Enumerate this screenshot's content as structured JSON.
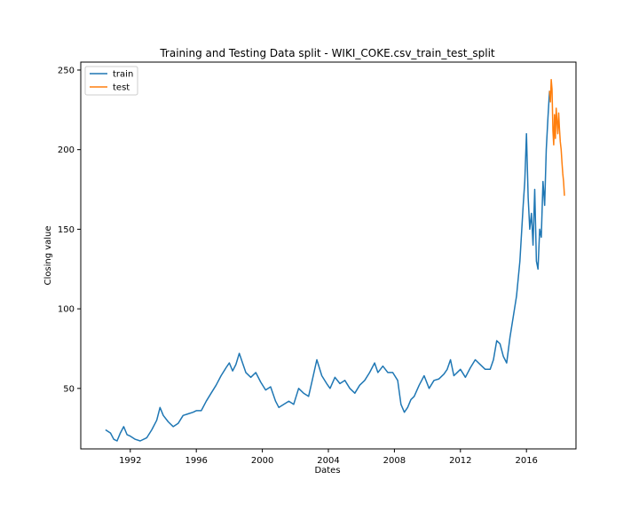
{
  "chart_data": {
    "type": "line",
    "title": "Training and Testing Data split - WIKI_COKE.csv_train_test_split",
    "xlabel": "Dates",
    "ylabel": "Closing value",
    "xlim": [
      1989.0,
      2019.0
    ],
    "ylim": [
      12,
      255
    ],
    "xticks": [
      1992,
      1996,
      2000,
      2004,
      2008,
      2012,
      2016
    ],
    "xtick_labels": [
      "1992",
      "1996",
      "2000",
      "2004",
      "2008",
      "2012",
      "2016"
    ],
    "yticks": [
      50,
      100,
      150,
      200,
      250
    ],
    "ytick_labels": [
      "50",
      "100",
      "150",
      "200",
      "250"
    ],
    "grid": false,
    "legend_position": "top-left",
    "series": [
      {
        "name": "train",
        "color": "#1f77b4",
        "x": [
          1990.5,
          1990.8,
          1991.0,
          1991.2,
          1991.4,
          1991.6,
          1991.8,
          1992.0,
          1992.3,
          1992.6,
          1993.0,
          1993.3,
          1993.6,
          1993.8,
          1994.0,
          1994.3,
          1994.6,
          1994.9,
          1995.2,
          1995.5,
          1995.8,
          1996.0,
          1996.3,
          1996.6,
          1996.9,
          1997.2,
          1997.5,
          1997.8,
          1998.0,
          1998.2,
          1998.4,
          1998.6,
          1998.8,
          1999.0,
          1999.3,
          1999.6,
          1999.9,
          2000.2,
          2000.5,
          2000.8,
          2001.0,
          2001.3,
          2001.6,
          2001.9,
          2002.2,
          2002.5,
          2002.8,
          2003.0,
          2003.3,
          2003.6,
          2003.9,
          2004.1,
          2004.4,
          2004.7,
          2005.0,
          2005.3,
          2005.6,
          2005.9,
          2006.2,
          2006.5,
          2006.8,
          2007.0,
          2007.3,
          2007.6,
          2007.9,
          2008.2,
          2008.4,
          2008.6,
          2008.8,
          2009.0,
          2009.2,
          2009.5,
          2009.8,
          2010.1,
          2010.4,
          2010.7,
          2011.0,
          2011.2,
          2011.4,
          2011.6,
          2011.8,
          2012.0,
          2012.3,
          2012.6,
          2012.9,
          2013.2,
          2013.5,
          2013.8,
          2014.0,
          2014.2,
          2014.4,
          2014.6,
          2014.8,
          2015.0,
          2015.2,
          2015.4,
          2015.6,
          2015.8,
          2015.9,
          2016.0,
          2016.1,
          2016.2,
          2016.3,
          2016.4,
          2016.5,
          2016.6,
          2016.7,
          2016.8,
          2016.9,
          2017.0,
          2017.1,
          2017.2,
          2017.3,
          2017.4
        ],
        "values": [
          24,
          22,
          18,
          17,
          22,
          26,
          21,
          20,
          18,
          17,
          19,
          24,
          30,
          38,
          33,
          29,
          26,
          28,
          33,
          34,
          35,
          36,
          36,
          42,
          47,
          52,
          58,
          63,
          66,
          61,
          65,
          72,
          66,
          60,
          57,
          60,
          54,
          49,
          51,
          42,
          38,
          40,
          42,
          40,
          50,
          47,
          45,
          54,
          68,
          58,
          53,
          50,
          57,
          53,
          55,
          50,
          47,
          52,
          55,
          60,
          66,
          60,
          64,
          60,
          60,
          55,
          40,
          35,
          38,
          43,
          45,
          52,
          58,
          50,
          55,
          56,
          59,
          62,
          68,
          58,
          60,
          62,
          57,
          63,
          68,
          65,
          62,
          62,
          68,
          80,
          78,
          70,
          66,
          82,
          95,
          108,
          130,
          165,
          180,
          210,
          170,
          150,
          160,
          140,
          175,
          130,
          125,
          150,
          145,
          180,
          165,
          200,
          220,
          237
        ]
      },
      {
        "name": "test",
        "color": "#ff7f0e",
        "x": [
          2017.4,
          2017.45,
          2017.5,
          2017.55,
          2017.6,
          2017.65,
          2017.7,
          2017.75,
          2017.8,
          2017.85,
          2017.9,
          2017.95,
          2018.0,
          2018.05,
          2018.1,
          2018.15,
          2018.2,
          2018.25,
          2018.3
        ],
        "values": [
          237,
          230,
          244,
          238,
          212,
          203,
          222,
          207,
          226,
          218,
          210,
          223,
          213,
          205,
          200,
          192,
          185,
          180,
          171
        ]
      }
    ]
  }
}
